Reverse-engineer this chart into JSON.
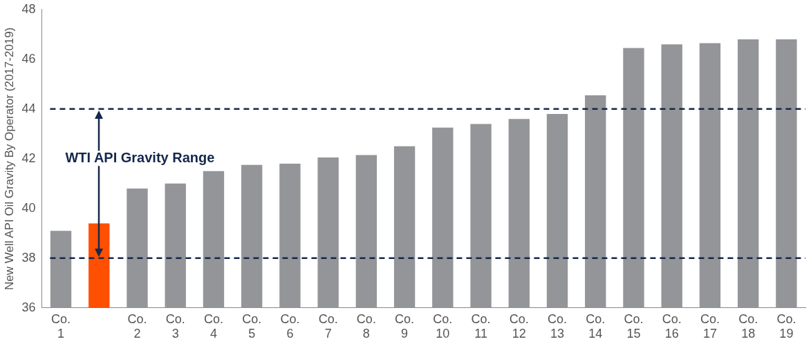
{
  "chart_data": {
    "type": "bar",
    "ylabel": "New Well API Oil Gravity By Operator (2017-2019)",
    "categories": [
      "Co. 1",
      null,
      "Co. 2",
      "Co. 3",
      "Co. 4",
      "Co. 5",
      "Co. 6",
      "Co. 7",
      "Co. 8",
      "Co. 9",
      "Co. 10",
      "Co. 11",
      "Co. 12",
      "Co. 13",
      "Co. 14",
      "Co. 15",
      "Co. 16",
      "Co. 17",
      "Co. 18",
      "Co. 19"
    ],
    "values": [
      39.1,
      39.4,
      40.8,
      41.0,
      41.5,
      41.75,
      41.8,
      42.05,
      42.15,
      42.5,
      43.25,
      43.4,
      43.6,
      43.8,
      44.55,
      46.45,
      46.6,
      46.65,
      46.8,
      46.8
    ],
    "colors": [
      "#939598",
      "#ff4f00",
      "#939598",
      "#939598",
      "#939598",
      "#939598",
      "#939598",
      "#939598",
      "#939598",
      "#939598",
      "#939598",
      "#939598",
      "#939598",
      "#939598",
      "#939598",
      "#939598",
      "#939598",
      "#939598",
      "#939598",
      "#939598"
    ],
    "ylim": [
      36,
      48
    ],
    "yticks": [
      36,
      38,
      40,
      42,
      44,
      46,
      48
    ],
    "grid": false,
    "legend": false,
    "ref_lines": [
      {
        "axis": "y",
        "value": 38,
        "color": "#14284b",
        "line_style": "dashed"
      },
      {
        "axis": "y",
        "value": 44,
        "color": "#14284b",
        "line_style": "dashed"
      }
    ],
    "annotations": [
      "WTI API Gravity Range"
    ]
  }
}
